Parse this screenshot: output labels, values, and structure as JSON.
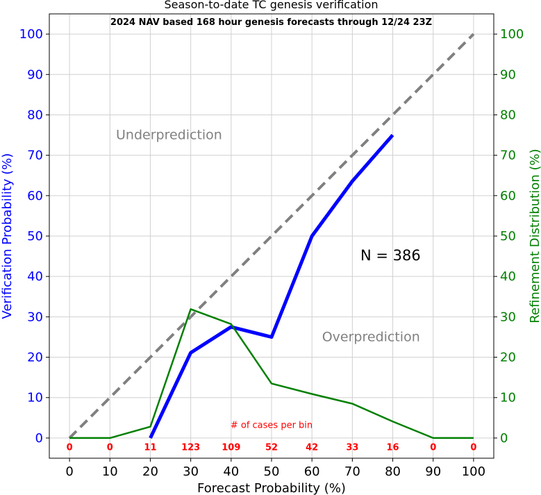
{
  "chart_data": {
    "type": "line",
    "title": "Season-to-date TC genesis verification",
    "subtitle": "2024 NAV based 168 hour genesis forecasts through 12/24 23Z",
    "xlabel": "Forecast Probability (%)",
    "ylabel_left": "Verification Probability (%)",
    "ylabel_right": "Refinement Distribution (%)",
    "xlim": [
      -5,
      105
    ],
    "ylim": [
      -5,
      105
    ],
    "x_ticks": [
      0,
      10,
      20,
      30,
      40,
      50,
      60,
      70,
      80,
      90,
      100
    ],
    "y_ticks": [
      0,
      10,
      20,
      30,
      40,
      50,
      60,
      70,
      80,
      90,
      100
    ],
    "grid": true,
    "series": [
      {
        "key": "reliability",
        "color": "#0000ff",
        "axis": "left",
        "x": [
          20,
          30,
          40,
          50,
          60,
          70,
          80
        ],
        "y": [
          0,
          21.1,
          27.5,
          25.0,
          50.0,
          63.6,
          75.0
        ]
      },
      {
        "key": "refinement",
        "color": "#008000",
        "axis": "right",
        "x": [
          0,
          10,
          20,
          30,
          40,
          50,
          60,
          70,
          80,
          90,
          100
        ],
        "y": [
          0,
          0,
          2.8,
          31.9,
          28.2,
          13.5,
          10.9,
          8.5,
          4.1,
          0,
          0
        ]
      },
      {
        "key": "perfect",
        "color": "#808080",
        "axis": "left",
        "style": "dashed",
        "x": [
          0,
          100
        ],
        "y": [
          0,
          100
        ]
      }
    ],
    "annotations": {
      "underprediction": {
        "text": "Underprediction",
        "x": 11.5,
        "y": 74
      },
      "overprediction": {
        "text": "Overprediction",
        "x": 62.5,
        "y": 24
      },
      "n_label": {
        "text": "N = 386",
        "x": 72,
        "y": 44
      },
      "cases_label": {
        "text": "# of cases per bin",
        "x": 50,
        "y": 2.5
      }
    },
    "cases_per_bin": {
      "x": [
        0,
        10,
        20,
        30,
        40,
        50,
        60,
        70,
        80,
        90,
        100
      ],
      "counts": [
        "0",
        "0",
        "11",
        "123",
        "109",
        "52",
        "42",
        "33",
        "16",
        "0",
        "0"
      ]
    },
    "colors": {
      "left_axis": "#0000ff",
      "right_axis": "#008000",
      "annotation_gray": "#808080",
      "cases_red": "#ff0000"
    }
  }
}
